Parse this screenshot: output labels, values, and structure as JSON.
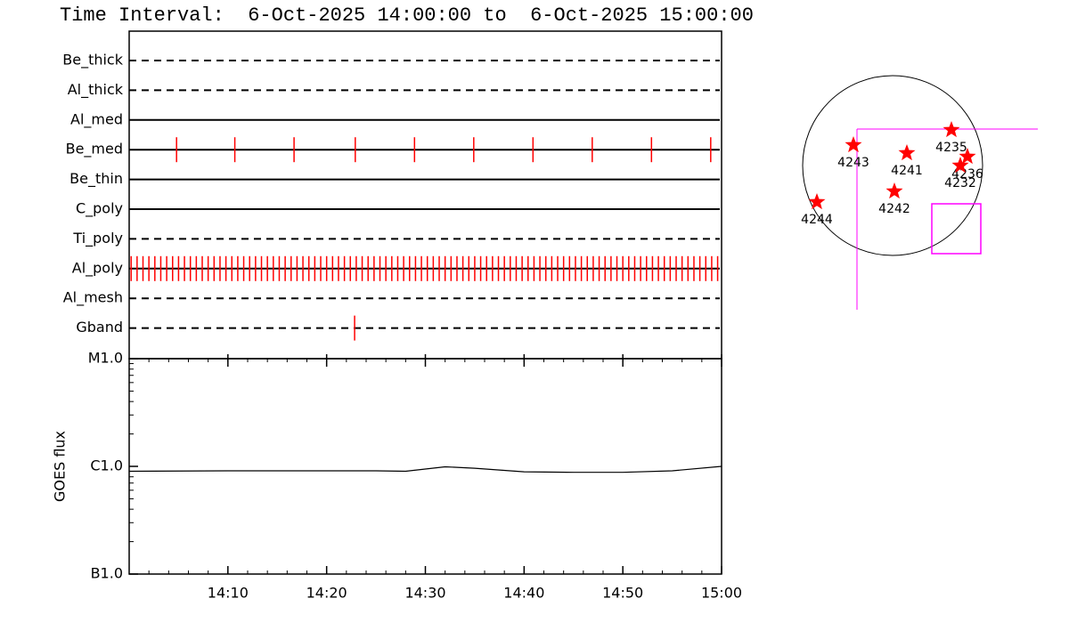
{
  "title": "Time Interval:  6-Oct-2025 14:00:00 to  6-Oct-2025 15:00:00",
  "chart_data": [
    {
      "type": "timeline",
      "xlim": [
        "14:00",
        "15:00"
      ],
      "series": [
        {
          "name": "Be_thick",
          "line": "dashed",
          "color": "#ff0000",
          "x": []
        },
        {
          "name": "Al_thick",
          "line": "dashed",
          "color": "#ff0000",
          "x": []
        },
        {
          "name": "Al_med",
          "line": "solid",
          "color": "#ff0000",
          "x": []
        },
        {
          "name": "Be_med",
          "line": "solid",
          "color": "#ff0000",
          "x": [
            "14:04:48",
            "14:10:42",
            "14:16:42",
            "14:22:54",
            "14:28:54",
            "14:34:54",
            "14:40:54",
            "14:46:54",
            "14:52:54",
            "14:58:54"
          ]
        },
        {
          "name": "Be_thin",
          "line": "solid",
          "color": "#ff0000",
          "x": []
        },
        {
          "name": "C_poly",
          "line": "solid",
          "color": "#ff0000",
          "x": []
        },
        {
          "name": "Ti_poly",
          "line": "dashed",
          "color": "#ff0000",
          "x": []
        },
        {
          "name": "Al_poly",
          "line": "solid",
          "color": "#ff0000",
          "x": [
            "14:00:12",
            "14:00:48",
            "14:01:24",
            "14:02:00",
            "14:02:36",
            "14:03:12",
            "14:03:48",
            "14:04:24",
            "14:05:00",
            "14:05:36",
            "14:06:12",
            "14:06:48",
            "14:07:24",
            "14:08:00",
            "14:08:36",
            "14:09:12",
            "14:09:48",
            "14:10:24",
            "14:11:00",
            "14:11:36",
            "14:12:12",
            "14:12:48",
            "14:13:24",
            "14:14:00",
            "14:14:36",
            "14:15:12",
            "14:15:48",
            "14:16:24",
            "14:17:00",
            "14:17:36",
            "14:18:12",
            "14:18:48",
            "14:19:24",
            "14:20:00",
            "14:20:36",
            "14:21:12",
            "14:21:48",
            "14:22:24",
            "14:23:00",
            "14:23:36",
            "14:24:12",
            "14:24:48",
            "14:25:24",
            "14:26:00",
            "14:26:36",
            "14:27:12",
            "14:27:48",
            "14:28:24",
            "14:29:00",
            "14:29:36",
            "14:30:12",
            "14:30:48",
            "14:31:24",
            "14:32:00",
            "14:32:36",
            "14:33:12",
            "14:33:48",
            "14:34:24",
            "14:35:00",
            "14:35:36",
            "14:36:12",
            "14:36:48",
            "14:37:24",
            "14:38:00",
            "14:38:36",
            "14:39:12",
            "14:39:48",
            "14:40:24",
            "14:41:00",
            "14:41:36",
            "14:42:12",
            "14:42:48",
            "14:43:24",
            "14:44:00",
            "14:44:36",
            "14:45:12",
            "14:45:48",
            "14:46:24",
            "14:47:00",
            "14:47:36",
            "14:48:12",
            "14:48:48",
            "14:49:24",
            "14:50:00",
            "14:50:36",
            "14:51:12",
            "14:51:48",
            "14:52:24",
            "14:53:00",
            "14:53:36",
            "14:54:12",
            "14:54:48",
            "14:55:24",
            "14:56:00",
            "14:56:36",
            "14:57:12",
            "14:57:48",
            "14:58:24",
            "14:59:00",
            "14:59:36"
          ]
        },
        {
          "name": "Al_mesh",
          "line": "dashed",
          "color": "#ff0000",
          "x": []
        },
        {
          "name": "Gband",
          "line": "dashed",
          "color": "#ff0000",
          "x": [
            "14:22:50"
          ]
        }
      ]
    },
    {
      "type": "line",
      "ylabel": "GOES flux",
      "log": true,
      "color": "#000000",
      "x": [
        "14:00",
        "14:10",
        "14:20",
        "14:25",
        "14:28",
        "14:32",
        "14:35",
        "14:40",
        "14:45",
        "14:50",
        "14:55",
        "15:00"
      ],
      "values": [
        9e-07,
        9.1e-07,
        9.1e-07,
        9.1e-07,
        9e-07,
        9.9e-07,
        9.6e-07,
        8.9e-07,
        8.8e-07,
        8.8e-07,
        9.1e-07,
        1e-06
      ],
      "xlim": [
        "14:00",
        "15:00"
      ],
      "xticks": [
        "14:10",
        "14:20",
        "14:30",
        "14:40",
        "14:50",
        "15:00"
      ],
      "ylim": [
        1e-07,
        1e-05
      ],
      "yticks": [
        {
          "value": 1e-07,
          "label": "B1.0"
        },
        {
          "value": 1e-06,
          "label": "C1.0"
        },
        {
          "value": 1e-05,
          "label": "M1.0"
        }
      ]
    }
  ],
  "sun_map": {
    "regions": [
      "4243",
      "4241",
      "4235",
      "4236",
      "4232",
      "4242",
      "4244"
    ]
  }
}
